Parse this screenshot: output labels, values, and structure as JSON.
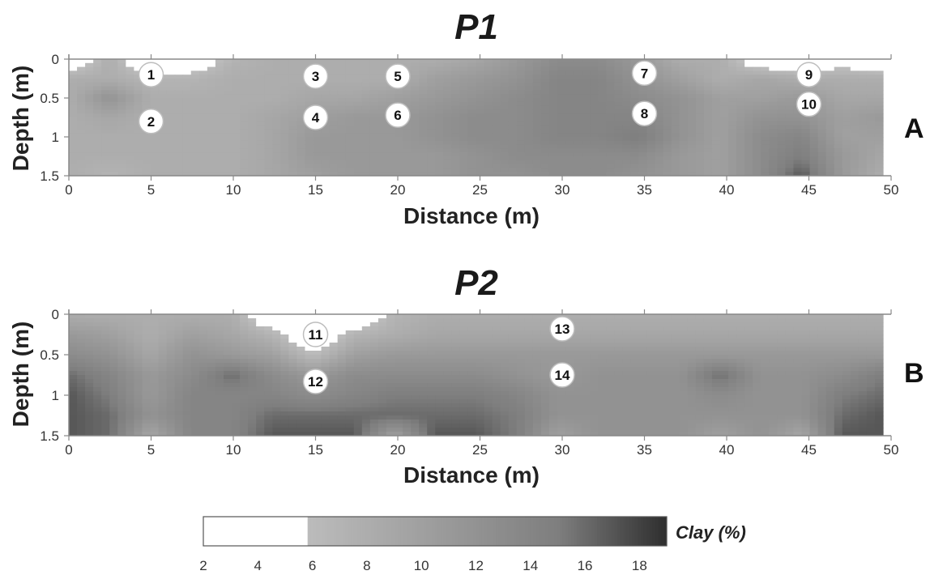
{
  "chart_data": [
    {
      "type": "heatmap",
      "title": "P1",
      "panel_label": "A",
      "xlabel": "Distance (m)",
      "ylabel": "Depth (m)",
      "xlim": [
        0,
        50
      ],
      "ylim": [
        0,
        1.5
      ],
      "y_inverted": true,
      "xticks": [
        "0",
        "5",
        "10",
        "15",
        "20",
        "25",
        "30",
        "35",
        "40",
        "45",
        "50"
      ],
      "yticks": [
        "0",
        "0.5",
        "1",
        "1.5"
      ],
      "x": [
        0,
        2.5,
        5,
        7.5,
        10,
        12.5,
        15,
        17.5,
        20,
        22.5,
        25,
        27.5,
        30,
        32.5,
        35,
        37.5,
        40,
        42.5,
        45,
        47.5,
        50
      ],
      "depths": [
        0,
        0.25,
        0.5,
        0.75,
        1.0,
        1.25,
        1.5
      ],
      "values": [
        [
          2,
          8,
          2,
          3,
          7,
          8,
          8,
          8,
          8,
          8,
          9,
          11,
          13,
          13,
          11,
          8,
          8,
          3,
          2,
          4,
          2
        ],
        [
          8,
          8,
          7,
          7,
          8,
          8,
          8,
          8,
          8,
          10,
          11,
          12,
          14,
          14,
          12,
          10,
          8,
          9,
          8,
          8,
          8
        ],
        [
          8,
          12,
          8,
          8,
          8,
          8,
          9,
          9,
          10,
          11,
          12,
          13,
          14,
          14,
          13,
          12,
          10,
          10,
          11,
          9,
          9
        ],
        [
          8,
          9,
          8,
          8,
          8,
          9,
          10,
          11,
          11,
          12,
          13,
          13,
          14,
          14,
          14,
          12,
          10,
          12,
          12,
          10,
          11
        ],
        [
          8,
          8,
          8,
          8,
          8,
          9,
          11,
          11,
          11,
          12,
          13,
          13,
          14,
          14,
          15,
          12,
          10,
          13,
          14,
          10,
          10
        ],
        [
          8,
          8,
          8,
          8,
          8,
          9,
          11,
          11,
          11,
          11,
          12,
          13,
          13,
          13,
          13,
          11,
          10,
          13,
          15,
          11,
          9
        ],
        [
          8,
          7,
          8,
          8,
          8,
          9,
          10,
          11,
          11,
          11,
          12,
          12,
          13,
          13,
          12,
          11,
          10,
          13,
          17,
          11,
          8
        ]
      ],
      "markers": [
        {
          "label": "1",
          "x": 5,
          "depth": 0.2
        },
        {
          "label": "2",
          "x": 5,
          "depth": 0.8
        },
        {
          "label": "3",
          "x": 15,
          "depth": 0.22
        },
        {
          "label": "4",
          "x": 15,
          "depth": 0.75
        },
        {
          "label": "5",
          "x": 20,
          "depth": 0.22
        },
        {
          "label": "6",
          "x": 20,
          "depth": 0.72
        },
        {
          "label": "7",
          "x": 35,
          "depth": 0.18
        },
        {
          "label": "8",
          "x": 35,
          "depth": 0.7
        },
        {
          "label": "9",
          "x": 45,
          "depth": 0.2
        },
        {
          "label": "10",
          "x": 45,
          "depth": 0.58
        }
      ]
    },
    {
      "type": "heatmap",
      "title": "P2",
      "panel_label": "B",
      "xlabel": "Distance (m)",
      "ylabel": "Depth (m)",
      "xlim": [
        0,
        50
      ],
      "ylim": [
        0,
        1.5
      ],
      "y_inverted": true,
      "xticks": [
        "0",
        "5",
        "10",
        "15",
        "20",
        "25",
        "30",
        "35",
        "40",
        "45",
        "50"
      ],
      "yticks": [
        "0",
        "0.5",
        "1",
        "1.5"
      ],
      "x": [
        0,
        2.5,
        5,
        7.5,
        10,
        12.5,
        15,
        17.5,
        20,
        22.5,
        25,
        27.5,
        30,
        32.5,
        35,
        37.5,
        40,
        42.5,
        45,
        47.5,
        50
      ],
      "depths": [
        0,
        0.25,
        0.5,
        0.75,
        1.0,
        1.25,
        1.5
      ],
      "values": [
        [
          8,
          8,
          8,
          8,
          8,
          2,
          2,
          2,
          7,
          8,
          8,
          8,
          8,
          8,
          8,
          8,
          8,
          8,
          8,
          8,
          8
        ],
        [
          11,
          10,
          8,
          10,
          9,
          7,
          2,
          7,
          8,
          9,
          9,
          9,
          9,
          9,
          9,
          9,
          9,
          9,
          9,
          9,
          9
        ],
        [
          13,
          12,
          9,
          12,
          11,
          10,
          6,
          10,
          11,
          11,
          11,
          11,
          11,
          11,
          11,
          11,
          11,
          11,
          11,
          11,
          11
        ],
        [
          16,
          14,
          11,
          13,
          16,
          13,
          11,
          13,
          13,
          13,
          13,
          12,
          11,
          12,
          12,
          12,
          16,
          12,
          12,
          13,
          15
        ],
        [
          17,
          15,
          11,
          14,
          14,
          14,
          13,
          14,
          15,
          15,
          15,
          14,
          12,
          12,
          12,
          12,
          13,
          12,
          12,
          15,
          16
        ],
        [
          17,
          16,
          12,
          14,
          14,
          16,
          16,
          16,
          16,
          16,
          16,
          15,
          12,
          12,
          12,
          12,
          12,
          12,
          12,
          16,
          17
        ],
        [
          17,
          16,
          9,
          14,
          14,
          17,
          17,
          17,
          10,
          17,
          17,
          15,
          10,
          12,
          12,
          12,
          10,
          12,
          9,
          17,
          17
        ]
      ],
      "markers": [
        {
          "label": "11",
          "x": 15,
          "depth": 0.25
        },
        {
          "label": "12",
          "x": 15,
          "depth": 0.83
        },
        {
          "label": "13",
          "x": 30,
          "depth": 0.18
        },
        {
          "label": "14",
          "x": 30,
          "depth": 0.75
        }
      ]
    }
  ],
  "colorbar": {
    "label": "Clay (%)",
    "range": [
      2,
      19
    ],
    "ticks": [
      "2",
      "4",
      "6",
      "8",
      "10",
      "12",
      "14",
      "16",
      "18"
    ]
  },
  "colors": {
    "low": "#ffffff",
    "mid": "#9a9a9a",
    "high": "#2f2f2f"
  }
}
